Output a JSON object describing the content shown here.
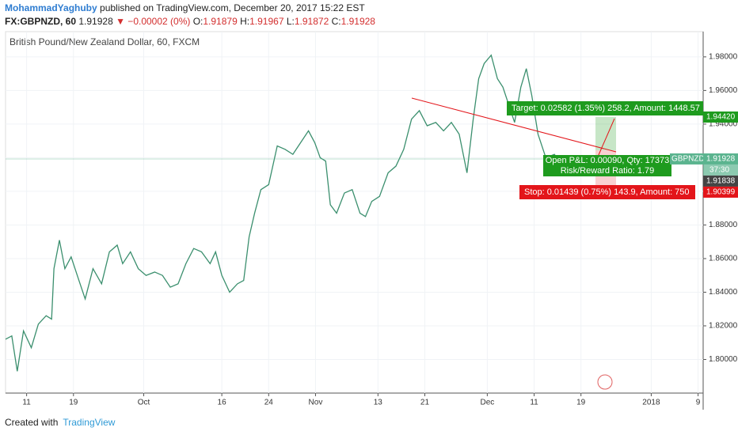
{
  "header": {
    "user": "MohammadYaghuby",
    "published": "published on TradingView.com, December 20, 2017 15:22 EST",
    "symbol": "FX:GBPNZD, 60",
    "last": "1.91928",
    "change": "▼ −0.00002 (0%)",
    "ohlc": [
      {
        "key": "O:",
        "value": "1.91879"
      },
      {
        "key": "H:",
        "value": "1.91967"
      },
      {
        "key": "L:",
        "value": "1.91872"
      },
      {
        "key": "C:",
        "value": "1.91928"
      }
    ]
  },
  "chart_data": {
    "type": "line",
    "title": "British Pound/New Zealand Dollar, 60, FXCM",
    "x": [
      -2.7,
      -1.9,
      -1.2,
      -0.4,
      0.6,
      1.5,
      2.5,
      3.2,
      3.5,
      4.2,
      4.9,
      5.7,
      6.7,
      7.5,
      8.5,
      9.6,
      10.6,
      11.6,
      12.3,
      13.3,
      14.3,
      15.3,
      16.4,
      17.4,
      18.4,
      19.4,
      20.4,
      21.4,
      22.4,
      23.5,
      24.2,
      25.0,
      26.0,
      27.0,
      27.8,
      28.5,
      29.2,
      30.0,
      31.0,
      32.1,
      33.1,
      34.1,
      35.1,
      36.1,
      36.9,
      37.6,
      38.3,
      38.9,
      39.7,
      40.7,
      41.7,
      42.7,
      43.4,
      44.2,
      45.2,
      46.3,
      47.3,
      48.3,
      49.3,
      50.3,
      51.3,
      52.4,
      53.4,
      54.4,
      55.4,
      56.4,
      57.2,
      57.9,
      58.6,
      59.5,
      60.3,
      61.0,
      62.0,
      62.5,
      63.3,
      64.0,
      64.7,
      65.5,
      66.5,
      67.6,
      68.6,
      69.6,
      70.6,
      71.6,
      72.1,
      72.6
    ],
    "series": [
      {
        "name": "GBPNZD",
        "color": "#3b8f6e",
        "values": [
          1.812,
          1.814,
          1.793,
          1.817,
          1.807,
          1.821,
          1.826,
          1.824,
          1.854,
          1.871,
          1.854,
          1.861,
          1.847,
          1.836,
          1.854,
          1.845,
          1.864,
          1.868,
          1.857,
          1.864,
          1.854,
          1.85,
          1.852,
          1.85,
          1.843,
          1.845,
          1.857,
          1.866,
          1.864,
          1.857,
          1.864,
          1.85,
          1.84,
          1.845,
          1.847,
          1.873,
          1.887,
          1.901,
          1.904,
          1.927,
          1.925,
          1.922,
          1.929,
          1.936,
          1.929,
          1.92,
          1.918,
          1.892,
          1.887,
          1.899,
          1.901,
          1.887,
          1.885,
          1.894,
          1.897,
          1.911,
          1.915,
          1.925,
          1.943,
          1.948,
          1.939,
          1.941,
          1.936,
          1.941,
          1.934,
          1.911,
          1.943,
          1.967,
          1.976,
          1.981,
          1.967,
          1.962,
          1.948,
          1.941,
          1.962,
          1.973,
          1.957,
          1.934,
          1.92,
          1.922,
          1.915,
          1.913,
          1.918,
          1.911,
          1.913,
          1.919
        ]
      }
    ],
    "xlim": [
      -2.7,
      86.65
    ],
    "ylim": [
      1.78,
      1.995
    ],
    "xticks": [
      {
        "value": 0,
        "label": "11"
      },
      {
        "value": 6,
        "label": "19"
      },
      {
        "value": 15,
        "label": "Oct"
      },
      {
        "value": 25,
        "label": "16"
      },
      {
        "value": 31,
        "label": "24"
      },
      {
        "value": 37,
        "label": "Nov"
      },
      {
        "value": 45,
        "label": "13"
      },
      {
        "value": 51,
        "label": "21"
      },
      {
        "value": 59,
        "label": "Dec"
      },
      {
        "value": 65,
        "label": "11"
      },
      {
        "value": 71,
        "label": "19"
      },
      {
        "value": 80,
        "label": "2018"
      },
      {
        "value": 86,
        "label": "9"
      }
    ],
    "yticks": [
      {
        "value": 1.8,
        "label": "1.80000"
      },
      {
        "value": 1.82,
        "label": "1.82000"
      },
      {
        "value": 1.84,
        "label": "1.84000"
      },
      {
        "value": 1.86,
        "label": "1.86000"
      },
      {
        "value": 1.88,
        "label": "1.88000"
      },
      {
        "value": 1.9,
        "label": "1.90000"
      },
      {
        "value": 1.92,
        "label": "1.92000"
      },
      {
        "value": 1.94,
        "label": "1.94000"
      },
      {
        "value": 1.96,
        "label": "1.96000"
      },
      {
        "value": 1.98,
        "label": "1.98000"
      }
    ],
    "grid": true,
    "price_markers": [
      {
        "value": 1.9442,
        "label": "1.94420",
        "color": "#1e9b1e"
      },
      {
        "value": 1.91928,
        "label": "1.91928",
        "color": "#5bb48f"
      },
      {
        "value": 1.91838,
        "label": "1.91838",
        "color": "#444444"
      },
      {
        "value": 1.90399,
        "label": "1.90399",
        "color": "#e3151a"
      }
    ],
    "countdown": "37:30",
    "annotations": {
      "target": "Target: 0.02582 (1.35%) 258.2, Amount: 1448.57",
      "pnl": "Open P&L: 0.00090, Qty: 17373",
      "ratio": "Risk/Reward Ratio: 1.79",
      "stop": "Stop: 0.01439 (0.75%) 143.9, Amount: 750"
    }
  },
  "footer": {
    "created": "Created with",
    "brand": "TradingView"
  }
}
